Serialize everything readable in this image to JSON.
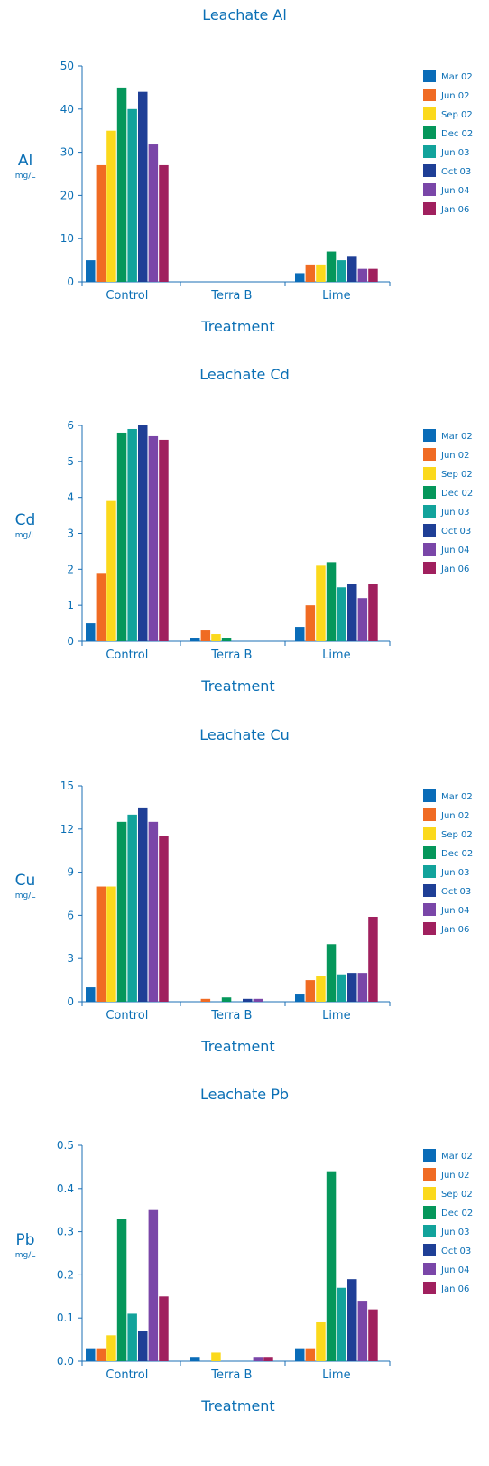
{
  "colors": {
    "axis": "#1b6fb5",
    "series": [
      "#0a6cb8",
      "#f06b23",
      "#fbd91c",
      "#05975b",
      "#12a39b",
      "#1f3f96",
      "#7a46a8",
      "#a0205e"
    ]
  },
  "chart_data": [
    {
      "type": "bar",
      "title": "Leachate Al",
      "ylabel": "Al",
      "yunit": "mg/L",
      "xlabel": "Treatment",
      "categories": [
        "Control",
        "Terra B",
        "Lime"
      ],
      "yticks": [
        "0",
        "10",
        "20",
        "30",
        "40",
        "50"
      ],
      "ylim": [
        0,
        50
      ],
      "legend_position": "right",
      "series": [
        {
          "name": "Mar 02",
          "values": [
            5,
            0,
            2
          ]
        },
        {
          "name": "Jun 02",
          "values": [
            27,
            0,
            4
          ]
        },
        {
          "name": "Sep 02",
          "values": [
            35,
            0,
            4
          ]
        },
        {
          "name": "Dec 02",
          "values": [
            45,
            0,
            7
          ]
        },
        {
          "name": "Jun 03",
          "values": [
            40,
            0,
            5
          ]
        },
        {
          "name": "Oct 03",
          "values": [
            44,
            0,
            6
          ]
        },
        {
          "name": "Jun 04",
          "values": [
            32,
            0,
            3
          ]
        },
        {
          "name": "Jan 06",
          "values": [
            27,
            0,
            3
          ]
        }
      ]
    },
    {
      "type": "bar",
      "title": "Leachate Cd",
      "ylabel": "Cd",
      "yunit": "mg/L",
      "xlabel": "Treatment",
      "categories": [
        "Control",
        "Terra B",
        "Lime"
      ],
      "yticks": [
        "0",
        "1",
        "2",
        "3",
        "4",
        "5",
        "6"
      ],
      "ylim": [
        0,
        6
      ],
      "legend_position": "right",
      "series": [
        {
          "name": "Mar 02",
          "values": [
            0.5,
            0.1,
            0.4
          ]
        },
        {
          "name": "Jun 02",
          "values": [
            1.9,
            0.3,
            1.0
          ]
        },
        {
          "name": "Sep 02",
          "values": [
            3.9,
            0.2,
            2.1
          ]
        },
        {
          "name": "Dec 02",
          "values": [
            5.8,
            0.1,
            2.2
          ]
        },
        {
          "name": "Jun 03",
          "values": [
            5.9,
            0,
            1.5
          ]
        },
        {
          "name": "Oct 03",
          "values": [
            6.0,
            0,
            1.6
          ]
        },
        {
          "name": "Jun 04",
          "values": [
            5.7,
            0,
            1.2
          ]
        },
        {
          "name": "Jan 06",
          "values": [
            5.6,
            0,
            1.6
          ]
        }
      ]
    },
    {
      "type": "bar",
      "title": "Leachate Cu",
      "ylabel": "Cu",
      "yunit": "mg/L",
      "xlabel": "Treatment",
      "categories": [
        "Control",
        "Terra B",
        "Lime"
      ],
      "yticks": [
        "0",
        "3",
        "6",
        "9",
        "12",
        "15"
      ],
      "ylim": [
        0,
        15
      ],
      "legend_position": "right",
      "series": [
        {
          "name": "Mar 02",
          "values": [
            1.0,
            0,
            0.5
          ]
        },
        {
          "name": "Jun 02",
          "values": [
            8.0,
            0.2,
            1.5
          ]
        },
        {
          "name": "Sep 02",
          "values": [
            8.0,
            0,
            1.8
          ]
        },
        {
          "name": "Dec 02",
          "values": [
            12.5,
            0.3,
            4.0
          ]
        },
        {
          "name": "Jun 03",
          "values": [
            13.0,
            0,
            1.9
          ]
        },
        {
          "name": "Oct 03",
          "values": [
            13.5,
            0.2,
            2.0
          ]
        },
        {
          "name": "Jun 04",
          "values": [
            12.5,
            0.2,
            2.0
          ]
        },
        {
          "name": "Jan 06",
          "values": [
            11.5,
            0,
            5.9
          ]
        }
      ]
    },
    {
      "type": "bar",
      "title": "Leachate Pb",
      "ylabel": "Pb",
      "yunit": "mg/L",
      "xlabel": "Treatment",
      "categories": [
        "Control",
        "Terra B",
        "Lime"
      ],
      "yticks": [
        "0.0",
        "0.1",
        "0.2",
        "0.3",
        "0.4",
        "0.5"
      ],
      "ylim": [
        0,
        0.5
      ],
      "legend_position": "right",
      "series": [
        {
          "name": "Mar 02",
          "values": [
            0.03,
            0.01,
            0.03
          ]
        },
        {
          "name": "Jun 02",
          "values": [
            0.03,
            0,
            0.03
          ]
        },
        {
          "name": "Sep 02",
          "values": [
            0.06,
            0.02,
            0.09
          ]
        },
        {
          "name": "Dec 02",
          "values": [
            0.33,
            0,
            0.44
          ]
        },
        {
          "name": "Jun 03",
          "values": [
            0.11,
            0,
            0.17
          ]
        },
        {
          "name": "Oct 03",
          "values": [
            0.07,
            0,
            0.19
          ]
        },
        {
          "name": "Jun 04",
          "values": [
            0.35,
            0.01,
            0.14
          ]
        },
        {
          "name": "Jan 06",
          "values": [
            0.15,
            0.01,
            0.12
          ]
        }
      ]
    }
  ]
}
